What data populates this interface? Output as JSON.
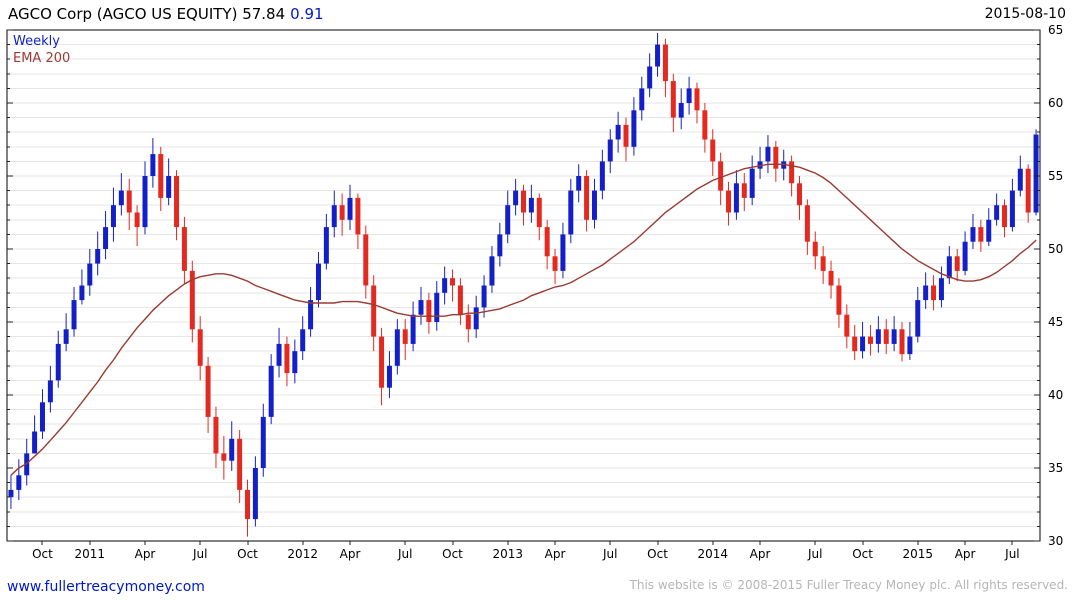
{
  "header": {
    "title": "AGCO Corp (AGCO US EQUITY) 57.84",
    "change": "0.91",
    "date": "2015-08-10"
  },
  "legend": {
    "series": "Weekly",
    "overlay": "EMA 200"
  },
  "footer": {
    "site": "www.fullertreacymoney.com",
    "copyright": "This website is © 2008-2015 Fuller Treacy Money plc. All rights reserved."
  },
  "colors": {
    "up": "#1320c8",
    "down": "#e42a20",
    "ema": "#9a3b31",
    "grid": "#e6e6e6",
    "axis": "#000000",
    "change": "#0018cc",
    "link": "#0018cc",
    "copyright": "#b5b5b5"
  },
  "chart_data": {
    "type": "candlestick",
    "title": "AGCO Corp (AGCO US EQUITY)",
    "interval": "Weekly",
    "overlay": "EMA 200",
    "last_price": 57.84,
    "change": 0.91,
    "date": "2015-08-10",
    "ylim": [
      30,
      65
    ],
    "y_ticks": [
      30,
      35,
      40,
      45,
      50,
      55,
      60,
      65
    ],
    "grid_step": 1,
    "x_ticks": [
      {
        "label": "Oct",
        "i": 4
      },
      {
        "label": "2011",
        "i": 10
      },
      {
        "label": "Apr",
        "i": 17
      },
      {
        "label": "Jul",
        "i": 24
      },
      {
        "label": "Oct",
        "i": 30
      },
      {
        "label": "2012",
        "i": 37
      },
      {
        "label": "Apr",
        "i": 43
      },
      {
        "label": "Jul",
        "i": 50
      },
      {
        "label": "Oct",
        "i": 56
      },
      {
        "label": "2013",
        "i": 63
      },
      {
        "label": "Apr",
        "i": 69
      },
      {
        "label": "Jul",
        "i": 76
      },
      {
        "label": "Oct",
        "i": 82
      },
      {
        "label": "2014",
        "i": 89
      },
      {
        "label": "Apr",
        "i": 95
      },
      {
        "label": "Jul",
        "i": 102
      },
      {
        "label": "Oct",
        "i": 108
      },
      {
        "label": "2015",
        "i": 115
      },
      {
        "label": "Apr",
        "i": 121
      },
      {
        "label": "Jul",
        "i": 127
      }
    ],
    "candles_format": "each candle is [high, low, close]; open = previous candle close",
    "first_open": 33.0,
    "candles": [
      [
        34.5,
        32.2,
        33.5
      ],
      [
        35.6,
        32.8,
        34.5
      ],
      [
        37.0,
        33.8,
        36.0
      ],
      [
        38.6,
        36.0,
        37.5
      ],
      [
        40.4,
        37.0,
        39.5
      ],
      [
        42.0,
        38.8,
        41.0
      ],
      [
        44.4,
        40.5,
        43.5
      ],
      [
        45.6,
        43.0,
        44.5
      ],
      [
        47.4,
        44.0,
        46.5
      ],
      [
        48.6,
        46.2,
        47.5
      ],
      [
        50.0,
        46.8,
        49.0
      ],
      [
        51.2,
        48.2,
        50.0
      ],
      [
        52.6,
        49.3,
        51.5
      ],
      [
        54.2,
        50.5,
        53.0
      ],
      [
        55.2,
        52.3,
        54.0
      ],
      [
        54.8,
        51.3,
        52.5
      ],
      [
        53.0,
        50.2,
        51.5
      ],
      [
        56.0,
        51.0,
        55.0
      ],
      [
        57.6,
        54.2,
        56.5
      ],
      [
        57.0,
        52.6,
        53.5
      ],
      [
        56.2,
        53.0,
        55.0
      ],
      [
        55.4,
        50.6,
        51.5
      ],
      [
        52.2,
        47.6,
        48.5
      ],
      [
        49.2,
        43.6,
        44.5
      ],
      [
        45.4,
        41.0,
        42.0
      ],
      [
        42.6,
        37.4,
        38.5
      ],
      [
        39.2,
        35.0,
        36.0
      ],
      [
        37.2,
        34.2,
        35.5
      ],
      [
        38.2,
        34.8,
        37.0
      ],
      [
        37.6,
        32.6,
        33.5
      ],
      [
        34.2,
        30.3,
        31.5
      ],
      [
        35.8,
        31.0,
        35.0
      ],
      [
        39.4,
        34.4,
        38.5
      ],
      [
        42.8,
        38.0,
        42.0
      ],
      [
        44.6,
        41.2,
        43.5
      ],
      [
        44.0,
        40.6,
        41.5
      ],
      [
        43.8,
        40.8,
        43.0
      ],
      [
        45.4,
        42.4,
        44.5
      ],
      [
        47.4,
        44.0,
        46.5
      ],
      [
        49.8,
        46.0,
        49.0
      ],
      [
        52.4,
        48.6,
        51.5
      ],
      [
        54.0,
        50.8,
        53.0
      ],
      [
        53.8,
        50.9,
        52.0
      ],
      [
        54.4,
        51.3,
        53.5
      ],
      [
        53.8,
        50.0,
        51.0
      ],
      [
        51.6,
        46.6,
        47.5
      ],
      [
        48.2,
        43.0,
        44.0
      ],
      [
        44.6,
        39.3,
        40.5
      ],
      [
        43.0,
        39.8,
        42.0
      ],
      [
        45.2,
        41.4,
        44.5
      ],
      [
        45.2,
        42.4,
        43.5
      ],
      [
        46.4,
        43.0,
        45.5
      ],
      [
        47.4,
        44.8,
        46.5
      ],
      [
        47.0,
        44.2,
        45.0
      ],
      [
        47.8,
        44.4,
        47.0
      ],
      [
        48.8,
        46.2,
        48.0
      ],
      [
        48.6,
        46.4,
        47.5
      ],
      [
        48.0,
        44.8,
        45.5
      ],
      [
        46.2,
        43.6,
        44.5
      ],
      [
        46.8,
        43.9,
        46.0
      ],
      [
        48.2,
        45.3,
        47.5
      ],
      [
        50.2,
        47.0,
        49.5
      ],
      [
        51.8,
        48.8,
        51.0
      ],
      [
        54.0,
        50.4,
        53.0
      ],
      [
        54.8,
        52.3,
        54.0
      ],
      [
        54.4,
        51.6,
        52.5
      ],
      [
        54.4,
        51.8,
        53.5
      ],
      [
        53.8,
        50.6,
        51.5
      ],
      [
        52.0,
        48.6,
        49.5
      ],
      [
        50.0,
        47.6,
        48.5
      ],
      [
        51.8,
        48.0,
        51.0
      ],
      [
        54.8,
        50.4,
        54.0
      ],
      [
        55.8,
        53.2,
        55.0
      ],
      [
        55.4,
        51.2,
        52.0
      ],
      [
        54.8,
        51.4,
        54.0
      ],
      [
        56.8,
        53.4,
        56.0
      ],
      [
        58.2,
        55.2,
        57.5
      ],
      [
        59.4,
        56.6,
        58.5
      ],
      [
        59.0,
        56.0,
        57.0
      ],
      [
        60.4,
        56.4,
        59.5
      ],
      [
        61.8,
        58.8,
        61.0
      ],
      [
        63.4,
        60.4,
        62.5
      ],
      [
        64.8,
        61.8,
        64.0
      ],
      [
        64.4,
        60.4,
        61.5
      ],
      [
        62.0,
        58.0,
        59.0
      ],
      [
        61.0,
        58.2,
        60.0
      ],
      [
        61.8,
        59.2,
        61.0
      ],
      [
        61.4,
        58.6,
        59.5
      ],
      [
        60.0,
        56.6,
        57.5
      ],
      [
        58.2,
        55.0,
        56.0
      ],
      [
        56.6,
        53.0,
        54.0
      ],
      [
        54.6,
        51.6,
        52.5
      ],
      [
        55.4,
        52.0,
        54.5
      ],
      [
        55.2,
        52.6,
        53.5
      ],
      [
        56.4,
        53.0,
        55.5
      ],
      [
        57.0,
        54.8,
        56.0
      ],
      [
        57.8,
        55.2,
        57.0
      ],
      [
        57.4,
        54.6,
        55.5
      ],
      [
        56.8,
        54.7,
        56.0
      ],
      [
        56.4,
        53.6,
        54.5
      ],
      [
        55.0,
        52.0,
        53.0
      ],
      [
        53.4,
        49.6,
        50.5
      ],
      [
        51.2,
        48.6,
        49.5
      ],
      [
        50.2,
        47.6,
        48.5
      ],
      [
        49.2,
        46.6,
        47.5
      ],
      [
        48.0,
        44.6,
        45.5
      ],
      [
        46.2,
        43.2,
        44.0
      ],
      [
        44.8,
        42.4,
        43.0
      ],
      [
        45.0,
        42.5,
        44.0
      ],
      [
        44.8,
        42.7,
        43.5
      ],
      [
        45.4,
        42.9,
        44.5
      ],
      [
        45.2,
        42.8,
        43.5
      ],
      [
        45.4,
        43.0,
        44.5
      ],
      [
        45.0,
        42.3,
        42.8
      ],
      [
        45.0,
        42.4,
        44.0
      ],
      [
        47.4,
        43.6,
        46.5
      ],
      [
        48.4,
        45.9,
        47.5
      ],
      [
        48.2,
        45.8,
        46.5
      ],
      [
        48.8,
        46.0,
        48.0
      ],
      [
        50.2,
        47.6,
        49.5
      ],
      [
        50.0,
        47.8,
        48.5
      ],
      [
        51.2,
        48.2,
        50.5
      ],
      [
        52.4,
        50.0,
        51.5
      ],
      [
        52.0,
        49.8,
        50.5
      ],
      [
        52.8,
        50.2,
        52.0
      ],
      [
        53.8,
        51.6,
        53.0
      ],
      [
        53.4,
        50.8,
        51.5
      ],
      [
        54.8,
        51.2,
        54.0
      ],
      [
        56.4,
        53.6,
        55.5
      ],
      [
        55.8,
        51.8,
        52.5
      ],
      [
        58.2,
        52.3,
        57.84
      ]
    ],
    "ema_200": [
      34.5,
      35.0,
      35.3,
      35.8,
      36.3,
      36.9,
      37.5,
      38.1,
      38.8,
      39.5,
      40.2,
      40.9,
      41.7,
      42.4,
      43.2,
      43.9,
      44.6,
      45.2,
      45.8,
      46.3,
      46.8,
      47.2,
      47.6,
      47.9,
      48.1,
      48.2,
      48.3,
      48.3,
      48.2,
      48.0,
      47.8,
      47.5,
      47.3,
      47.1,
      46.9,
      46.7,
      46.5,
      46.4,
      46.3,
      46.3,
      46.3,
      46.3,
      46.4,
      46.4,
      46.4,
      46.3,
      46.2,
      46.0,
      45.8,
      45.6,
      45.5,
      45.4,
      45.4,
      45.4,
      45.4,
      45.4,
      45.5,
      45.5,
      45.6,
      45.6,
      45.7,
      45.8,
      45.9,
      46.1,
      46.3,
      46.5,
      46.8,
      47.0,
      47.2,
      47.4,
      47.5,
      47.7,
      48.0,
      48.3,
      48.6,
      48.9,
      49.3,
      49.7,
      50.1,
      50.5,
      51.0,
      51.5,
      52.0,
      52.5,
      52.9,
      53.3,
      53.7,
      54.1,
      54.4,
      54.7,
      54.9,
      55.1,
      55.3,
      55.5,
      55.6,
      55.7,
      55.8,
      55.8,
      55.8,
      55.7,
      55.6,
      55.4,
      55.2,
      54.9,
      54.5,
      54.0,
      53.5,
      53.0,
      52.5,
      52.0,
      51.5,
      51.0,
      50.5,
      50.0,
      49.6,
      49.2,
      48.9,
      48.6,
      48.3,
      48.1,
      47.9,
      47.8,
      47.8,
      47.9,
      48.1,
      48.4,
      48.8,
      49.2,
      49.7,
      50.1,
      50.6
    ]
  }
}
